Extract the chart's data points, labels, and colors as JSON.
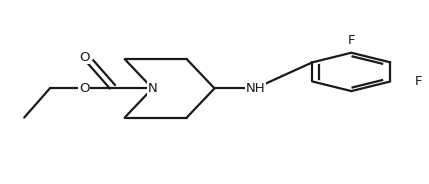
{
  "bg_color": "#ffffff",
  "line_color": "#1a1a1a",
  "line_width": 1.6,
  "font_size": 9.5,
  "figsize": [
    4.29,
    1.84
  ],
  "dpi": 100,
  "xlim": [
    0,
    1.0
  ],
  "ylim": [
    0.0,
    1.0
  ]
}
